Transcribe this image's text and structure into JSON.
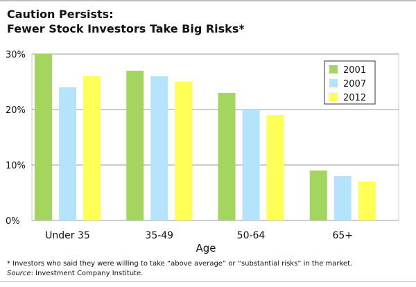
{
  "title_line1": "Caution Persists:",
  "title_line2": "Fewer Stock Investors Take Big Risks*",
  "footnote": "* Investors who said they were willing to take “above average” or “substantial risks” in the market.",
  "source_label": "Source",
  "source_text": ": Investment Company Institute.",
  "chart_data": {
    "type": "bar",
    "title": "Caution Persists: Fewer Stock Investors Take Big Risks*",
    "xlabel": "Age",
    "ylabel": "",
    "categories": [
      "Under 35",
      "35-49",
      "50-64",
      "65+"
    ],
    "series": [
      {
        "name": "2001",
        "values": [
          30,
          27,
          23,
          9
        ],
        "color": "#a3d55f"
      },
      {
        "name": "2007",
        "values": [
          24,
          26,
          20,
          8
        ],
        "color": "#b5e3fb"
      },
      {
        "name": "2012",
        "values": [
          26,
          25,
          19,
          7
        ],
        "color": "#ffff55"
      }
    ],
    "ylim": [
      0,
      30
    ],
    "yticks": [
      0,
      10,
      20,
      30
    ],
    "ytick_labels": [
      "0%",
      "10%",
      "20%",
      "30%"
    ],
    "grid": true,
    "legend_position": "top-right"
  }
}
